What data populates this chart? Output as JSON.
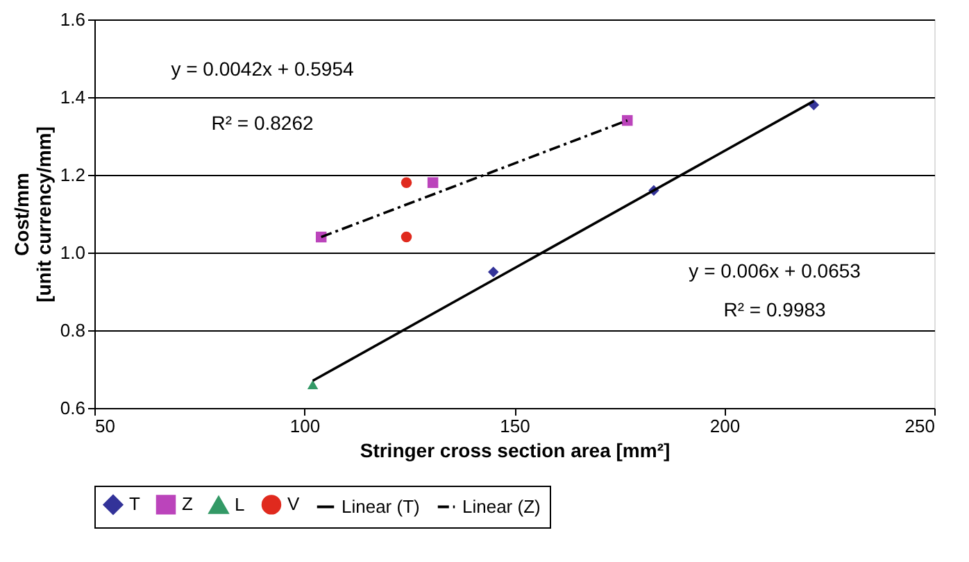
{
  "chart_data": {
    "type": "scatter",
    "xlabel": "Stringer cross section area [mm²]",
    "ylabel": "Cost/mm\n[unit currency/mm]",
    "xlim": [
      50,
      250
    ],
    "xticks": [
      50,
      100,
      150,
      200,
      250
    ],
    "ylim": [
      0.6,
      1.6
    ],
    "yticks": [
      {
        "value": 0.6,
        "label": "0.6"
      },
      {
        "value": 0.8,
        "label": "0.8"
      },
      {
        "value": 1.0,
        "label": "1.0"
      },
      {
        "value": 1.2,
        "label": "1.2"
      },
      {
        "value": 1.4,
        "label": "1.4"
      },
      {
        "value": 1.6,
        "label": "1.6"
      }
    ],
    "grid": "y",
    "legend": "bottom",
    "series": [
      {
        "name": "T",
        "marker": "diamond",
        "color": "#333399",
        "x": [
          145,
          183.2,
          221.3
        ],
        "values": [
          0.95,
          1.16,
          1.38
        ]
      },
      {
        "name": "Z",
        "marker": "square",
        "color": "#bb44bb",
        "x": [
          104,
          130.6,
          176.9
        ],
        "values": [
          1.04,
          1.18,
          1.34
        ]
      },
      {
        "name": "L",
        "marker": "triangle",
        "color": "#339966",
        "x": [
          102
        ],
        "values": [
          0.66
        ]
      },
      {
        "name": "V",
        "marker": "circle",
        "color": "#e02a1e",
        "x": [
          124.3,
          124.3
        ],
        "values": [
          1.18,
          1.04
        ]
      },
      {
        "name": "Linear (T)",
        "type": "line",
        "line_style": "solid",
        "color": "#000000",
        "x": [
          102,
          221.3
        ],
        "values": [
          0.67,
          1.39
        ]
      },
      {
        "name": "Linear (Z)",
        "type": "line",
        "line_style": "dashed",
        "color": "#000000",
        "x": [
          104,
          176.9
        ],
        "values": [
          1.04,
          1.34
        ]
      }
    ],
    "annotations": [
      "y = 0.0042x + 0.5954",
      "R² = 0.8262",
      "y = 0.006x + 0.0653",
      "R² = 0.9983"
    ]
  }
}
